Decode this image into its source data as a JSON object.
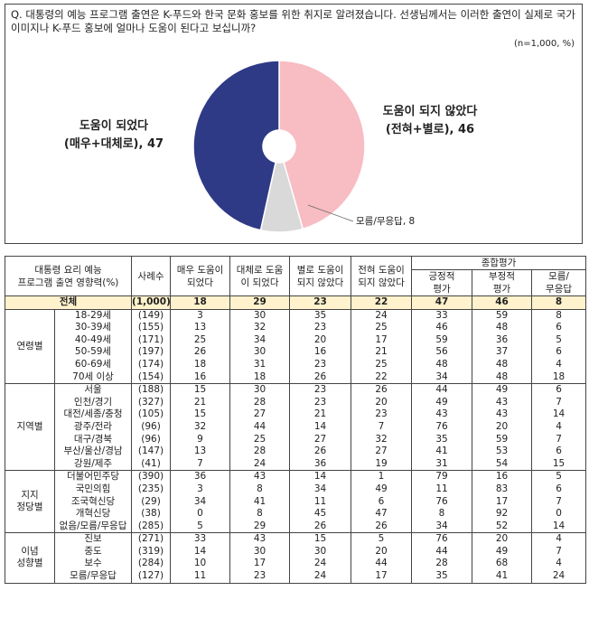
{
  "question": "Q. 대통령의 예능 프로그램 출연은 K-푸드와 한국 문화 홍보를 위한 취지로 알려졌습니다. 선생님께서는 이러한 출연이 실제로 국가 이미지나 K-푸드 홍보에 얼마나 도움이 된다고 보십니까?",
  "note": "(n=1,000, %)",
  "chart_data": {
    "type": "donut",
    "categories": [
      "도움이 되지 않았다",
      "모름/무응답",
      "도움이 되었다"
    ],
    "labels": [
      [
        "도움이 되지 않았다",
        "(전혀+별로), 46"
      ],
      [
        "모름/무응답, 8"
      ],
      [
        "도움이 되었다",
        "(매우+대체로), 47"
      ]
    ],
    "values": [
      46,
      8,
      47
    ],
    "colors": [
      "#f8bcc3",
      "#d9d9d9",
      "#2f3a86"
    ]
  },
  "table": {
    "header": {
      "title": "대통령 요리 예능\n프로그램 출연 영향력(%)",
      "sample": "사례수",
      "columns": [
        "매우 도움이\n되었다",
        "대체로 도움\n이 되었다",
        "별로 도움이\n되지 않았다",
        "전혀 도움이\n되지 않았다"
      ],
      "summary": "종합평가",
      "summary_columns": [
        "긍정적\n평가",
        "부정적\n평가",
        "모름/\n무응답"
      ]
    },
    "total": {
      "label": "전체",
      "n": "(1,000)",
      "values": [
        18,
        29,
        23,
        22,
        47,
        46,
        8
      ]
    },
    "groups": [
      {
        "label": "연령별",
        "rows": [
          {
            "label": "18-29세",
            "n": "(149)",
            "values": [
              3,
              30,
              35,
              24,
              33,
              59,
              8
            ]
          },
          {
            "label": "30-39세",
            "n": "(155)",
            "values": [
              13,
              32,
              23,
              25,
              46,
              48,
              6
            ]
          },
          {
            "label": "40-49세",
            "n": "(171)",
            "values": [
              25,
              34,
              20,
              17,
              59,
              36,
              5
            ]
          },
          {
            "label": "50-59세",
            "n": "(197)",
            "values": [
              26,
              30,
              16,
              21,
              56,
              37,
              6
            ]
          },
          {
            "label": "60-69세",
            "n": "(174)",
            "values": [
              18,
              31,
              23,
              25,
              48,
              48,
              4
            ]
          },
          {
            "label": "70세 이상",
            "n": "(154)",
            "values": [
              16,
              18,
              26,
              22,
              34,
              48,
              18
            ]
          }
        ]
      },
      {
        "label": "지역별",
        "rows": [
          {
            "label": "서울",
            "n": "(188)",
            "values": [
              15,
              30,
              23,
              26,
              44,
              49,
              6
            ]
          },
          {
            "label": "인천/경기",
            "n": "(327)",
            "values": [
              21,
              28,
              23,
              20,
              49,
              43,
              7
            ]
          },
          {
            "label": "대전/세종/충청",
            "n": "(105)",
            "values": [
              15,
              27,
              21,
              23,
              43,
              43,
              14
            ]
          },
          {
            "label": "광주/전라",
            "n": "(96)",
            "values": [
              32,
              44,
              14,
              7,
              76,
              20,
              4
            ]
          },
          {
            "label": "대구/경북",
            "n": "(96)",
            "values": [
              9,
              25,
              27,
              32,
              35,
              59,
              7
            ]
          },
          {
            "label": "부산/울산/경남",
            "n": "(147)",
            "values": [
              13,
              28,
              26,
              27,
              41,
              53,
              6
            ]
          },
          {
            "label": "강원/제주",
            "n": "(41)",
            "values": [
              7,
              24,
              36,
              19,
              31,
              54,
              15
            ]
          }
        ]
      },
      {
        "label": "지지\n정당별",
        "rows": [
          {
            "label": "더불어민주당",
            "n": "(390)",
            "values": [
              36,
              43,
              14,
              1,
              79,
              16,
              5
            ]
          },
          {
            "label": "국민의힘",
            "n": "(235)",
            "values": [
              3,
              8,
              34,
              49,
              11,
              83,
              6
            ]
          },
          {
            "label": "조국혁신당",
            "n": "(29)",
            "values": [
              34,
              41,
              11,
              6,
              76,
              17,
              7
            ]
          },
          {
            "label": "개혁신당",
            "n": "(38)",
            "values": [
              0,
              8,
              45,
              47,
              8,
              92,
              0
            ]
          },
          {
            "label": "없음/모름/무응답",
            "n": "(285)",
            "values": [
              5,
              29,
              26,
              26,
              34,
              52,
              14
            ]
          }
        ]
      },
      {
        "label": "이념\n성향별",
        "rows": [
          {
            "label": "진보",
            "n": "(271)",
            "values": [
              33,
              43,
              15,
              5,
              76,
              20,
              4
            ]
          },
          {
            "label": "중도",
            "n": "(319)",
            "values": [
              14,
              30,
              30,
              20,
              44,
              49,
              7
            ]
          },
          {
            "label": "보수",
            "n": "(284)",
            "values": [
              10,
              17,
              24,
              44,
              28,
              68,
              4
            ]
          },
          {
            "label": "모름/무응답",
            "n": "(127)",
            "values": [
              11,
              23,
              24,
              17,
              35,
              41,
              24
            ]
          }
        ]
      }
    ]
  }
}
